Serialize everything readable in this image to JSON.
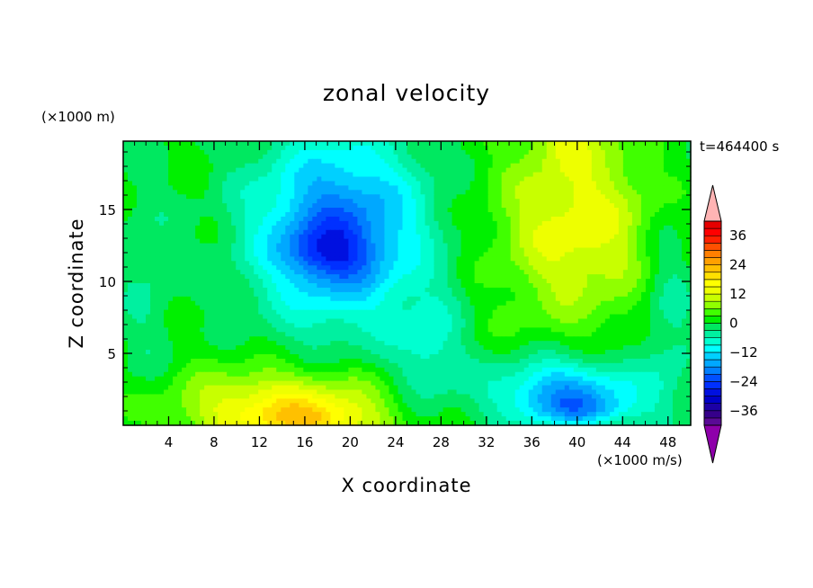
{
  "chart_data": {
    "type": "heatmap",
    "title": "zonal velocity",
    "xlabel": "X coordinate",
    "ylabel": "Z coordinate",
    "x_unit_label": "(×1000 m/s)",
    "y_unit_label": "(×1000 m)",
    "time_label": "t=464400 s",
    "xlim": [
      0,
      50
    ],
    "ylim": [
      0,
      19.75
    ],
    "x_ticks": [
      "4",
      "8",
      "12",
      "16",
      "20",
      "24",
      "28",
      "32",
      "36",
      "40",
      "44",
      "48"
    ],
    "y_ticks": [
      "5",
      "10",
      "15"
    ],
    "colorbar": {
      "levels": [
        -42,
        -39,
        -36,
        -33,
        -30,
        -27,
        -24,
        -21,
        -18,
        -15,
        -12,
        -9,
        -6,
        -3,
        0,
        3,
        6,
        9,
        12,
        15,
        18,
        21,
        24,
        27,
        30,
        33,
        36,
        39,
        42
      ],
      "colors": [
        "#5a0a96",
        "#36008a",
        "#1c00a6",
        "#0000c8",
        "#0010e0",
        "#0030ff",
        "#0050ff",
        "#0080ff",
        "#00a8ff",
        "#00d0ff",
        "#00ffff",
        "#00ffd0",
        "#00f0a0",
        "#00e860",
        "#00f000",
        "#40ff00",
        "#90ff00",
        "#c8ff00",
        "#eeff00",
        "#ffff00",
        "#ffe000",
        "#ffc000",
        "#ffa000",
        "#ff8000",
        "#ff5000",
        "#ff2000",
        "#ff0000",
        "#e60000"
      ],
      "under_color": "#8e00aa",
      "over_color": "#ffb4b4",
      "tick_labels": [
        "36",
        "24",
        "12",
        "0",
        "−12",
        "−24",
        "−36"
      ]
    },
    "field": {
      "background": 1,
      "features": [
        {
          "x": 19,
          "z": 13.5,
          "sx": 7.5,
          "sz": 6.5,
          "amp": -22
        },
        {
          "x": 18,
          "z": 12,
          "sx": 3.5,
          "sz": 1.8,
          "amp": -10
        },
        {
          "x": 14,
          "z": 1.2,
          "sx": 9,
          "sz": 2.6,
          "amp": 16
        },
        {
          "x": 17,
          "z": 0.3,
          "sx": 5,
          "sz": 1.2,
          "amp": 8
        },
        {
          "x": 40,
          "z": 14,
          "sx": 7,
          "sz": 6.5,
          "amp": 13
        },
        {
          "x": 39,
          "z": 20,
          "sx": 3,
          "sz": 2,
          "amp": 6
        },
        {
          "x": 39,
          "z": 2.2,
          "sx": 6.5,
          "sz": 2.4,
          "amp": -19
        },
        {
          "x": 41,
          "z": 1,
          "sx": 4,
          "sz": 1,
          "amp": -6
        },
        {
          "x": 27,
          "z": 5,
          "sx": 3,
          "sz": 4,
          "amp": -8
        },
        {
          "x": 2,
          "z": 10,
          "sx": 2.5,
          "sz": 8,
          "amp": -4
        },
        {
          "x": 48,
          "z": 8,
          "sx": 2.5,
          "sz": 8,
          "amp": -6
        }
      ]
    }
  }
}
